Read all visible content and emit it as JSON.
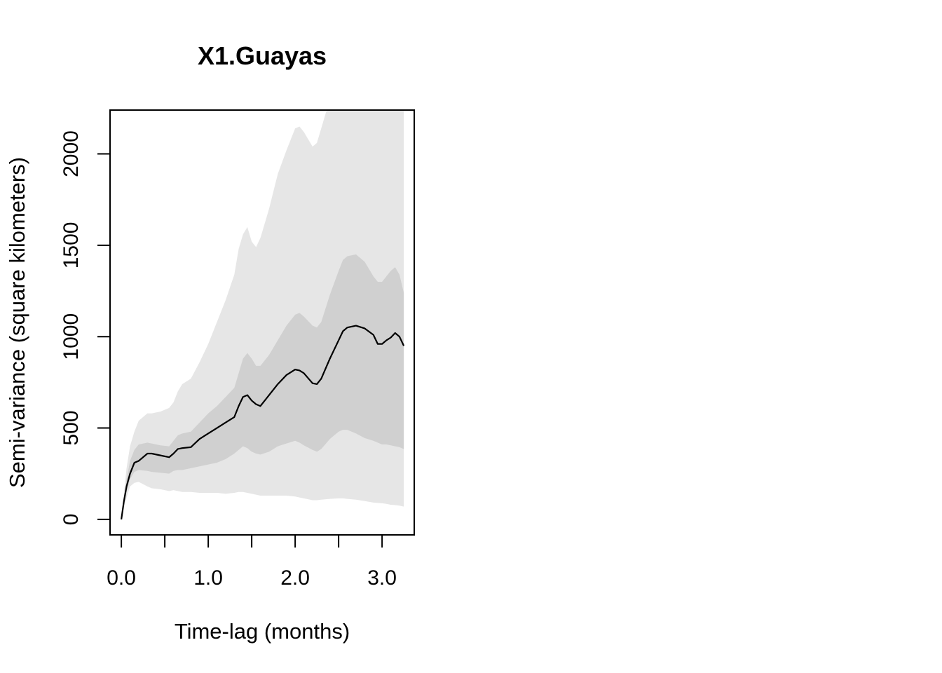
{
  "chart_data": {
    "type": "line",
    "title": "X1.Guayas",
    "xlabel": "Time-lag (months)",
    "ylabel": "Semi-variance (square kilometers)",
    "xlim": [
      -0.13,
      3.37
    ],
    "ylim": [
      -85,
      2240
    ],
    "x_ticks": [
      0.0,
      0.5,
      1.0,
      1.5,
      2.0,
      2.5,
      3.0
    ],
    "x_tick_labels": [
      "0.0",
      "",
      "1.0",
      "",
      "2.0",
      "",
      "3.0"
    ],
    "y_ticks": [
      0,
      500,
      1000,
      1500,
      2000
    ],
    "y_tick_labels": [
      "0",
      "500",
      "1000",
      "1500",
      "2000"
    ],
    "colors": {
      "outer_band": "#e6e6e6",
      "inner_band": "#d0d0d0",
      "line": "#000000"
    },
    "series": [
      {
        "x": [
          0.0,
          0.03,
          0.06,
          0.1,
          0.15,
          0.2,
          0.3,
          0.35,
          0.45,
          0.55,
          0.6,
          0.65,
          0.7,
          0.8,
          0.9,
          1.0,
          1.1,
          1.2,
          1.3,
          1.35,
          1.4,
          1.45,
          1.5,
          1.55,
          1.6,
          1.7,
          1.8,
          1.9,
          2.0,
          2.05,
          2.1,
          2.2,
          2.25,
          2.3,
          2.4,
          2.5,
          2.55,
          2.6,
          2.7,
          2.8,
          2.9,
          2.95,
          3.0,
          3.05,
          3.1,
          3.15,
          3.2,
          3.25
        ],
        "y": [
          0,
          100,
          180,
          250,
          310,
          320,
          360,
          360,
          350,
          340,
          360,
          385,
          390,
          395,
          440,
          470,
          500,
          530,
          560,
          620,
          670,
          680,
          650,
          630,
          620,
          680,
          740,
          790,
          820,
          815,
          800,
          745,
          740,
          770,
          880,
          980,
          1030,
          1050,
          1060,
          1045,
          1010,
          960,
          960,
          980,
          995,
          1020,
          1000,
          950
        ],
        "lower_inner": [
          0,
          80,
          150,
          220,
          260,
          270,
          265,
          260,
          255,
          250,
          265,
          270,
          270,
          280,
          290,
          300,
          310,
          330,
          360,
          380,
          400,
          390,
          370,
          360,
          355,
          370,
          400,
          415,
          430,
          420,
          405,
          380,
          370,
          385,
          440,
          480,
          490,
          490,
          470,
          445,
          430,
          420,
          410,
          410,
          405,
          400,
          395,
          385
        ],
        "upper_inner": [
          0,
          120,
          220,
          320,
          380,
          410,
          420,
          415,
          405,
          400,
          430,
          460,
          470,
          480,
          530,
          580,
          620,
          670,
          720,
          800,
          880,
          910,
          880,
          840,
          840,
          900,
          980,
          1060,
          1120,
          1130,
          1110,
          1060,
          1050,
          1080,
          1230,
          1360,
          1420,
          1440,
          1450,
          1410,
          1330,
          1300,
          1300,
          1330,
          1360,
          1380,
          1340,
          1240
        ],
        "lower_outer": [
          0,
          60,
          120,
          180,
          200,
          205,
          180,
          170,
          165,
          155,
          160,
          155,
          150,
          150,
          145,
          145,
          145,
          140,
          145,
          150,
          150,
          145,
          140,
          135,
          130,
          130,
          130,
          130,
          125,
          120,
          115,
          105,
          105,
          108,
          112,
          115,
          115,
          112,
          108,
          100,
          92,
          90,
          88,
          85,
          80,
          78,
          75,
          70
        ],
        "upper_outer": [
          0,
          140,
          280,
          400,
          480,
          540,
          580,
          580,
          590,
          610,
          640,
          700,
          740,
          770,
          860,
          960,
          1080,
          1200,
          1340,
          1480,
          1560,
          1600,
          1520,
          1490,
          1540,
          1700,
          1890,
          2020,
          2140,
          2150,
          2120,
          2040,
          2060,
          2140,
          2300,
          2400,
          2450,
          2500,
          2550,
          2600,
          2650,
          2700,
          2750,
          2780,
          2800,
          2820,
          2840,
          2850
        ]
      }
    ]
  }
}
